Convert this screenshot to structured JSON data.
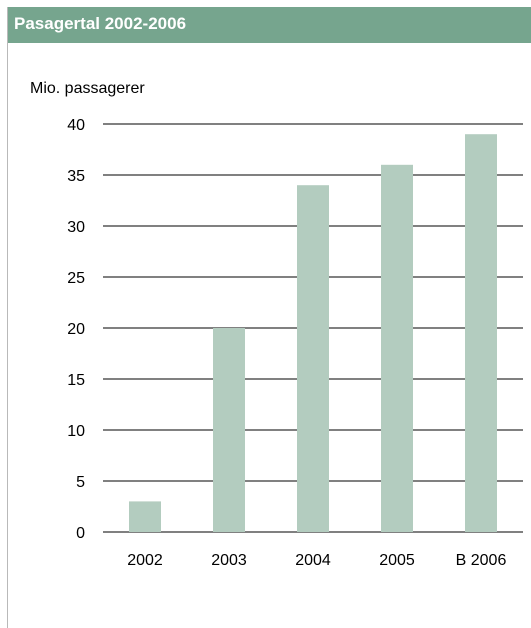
{
  "chart_data": {
    "type": "bar",
    "title": "Pasagertal 2002-2006",
    "ylabel": "Mio. passagerer",
    "xlabel": "",
    "categories": [
      "2002",
      "2003",
      "2004",
      "2005",
      "B 2006"
    ],
    "values": [
      3,
      20,
      34,
      36,
      39
    ],
    "ylim": [
      0,
      40
    ],
    "yticks": [
      "0",
      "5",
      "10",
      "15",
      "20",
      "25",
      "30",
      "35",
      "40"
    ],
    "grid": true,
    "bar_color": "#b3ccbf",
    "header_color": "#76a58e"
  }
}
